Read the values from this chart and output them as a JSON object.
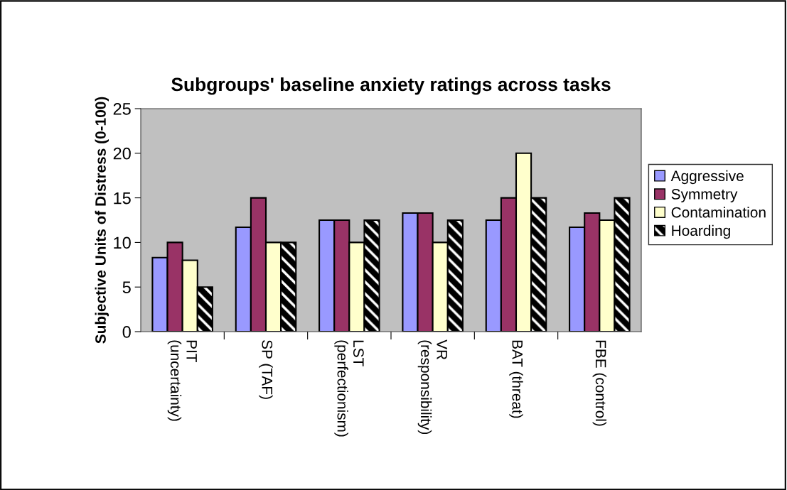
{
  "chart_data": {
    "type": "bar",
    "title": "Subgroups' baseline anxiety ratings across tasks",
    "ylabel": "Subjective Units of Distress (0-100)",
    "categories": [
      "PIT\n(uncertainty)",
      "SP (TAF)",
      "LST\n(perfectionism)",
      "VR\n(responsibility)",
      "BAT (threat)",
      "FBE (control)"
    ],
    "series": [
      {
        "name": "Aggressive",
        "color": "#9999ff",
        "values": [
          8.3,
          11.7,
          12.5,
          13.3,
          12.5,
          11.7
        ]
      },
      {
        "name": "Symmetry",
        "color": "#993366",
        "values": [
          10,
          15,
          12.5,
          13.3,
          15,
          13.3
        ]
      },
      {
        "name": "Contamination",
        "color": "#ffffcc",
        "values": [
          8,
          10,
          10,
          10,
          20,
          12.5
        ]
      },
      {
        "name": "Hoarding",
        "color": "#000000",
        "values": [
          5,
          10,
          12.5,
          12.5,
          15,
          15
        ]
      }
    ],
    "ylim": [
      0,
      25
    ],
    "yticks": [
      0,
      5,
      10,
      15,
      20,
      25
    ],
    "grid": false,
    "legend": "right"
  }
}
